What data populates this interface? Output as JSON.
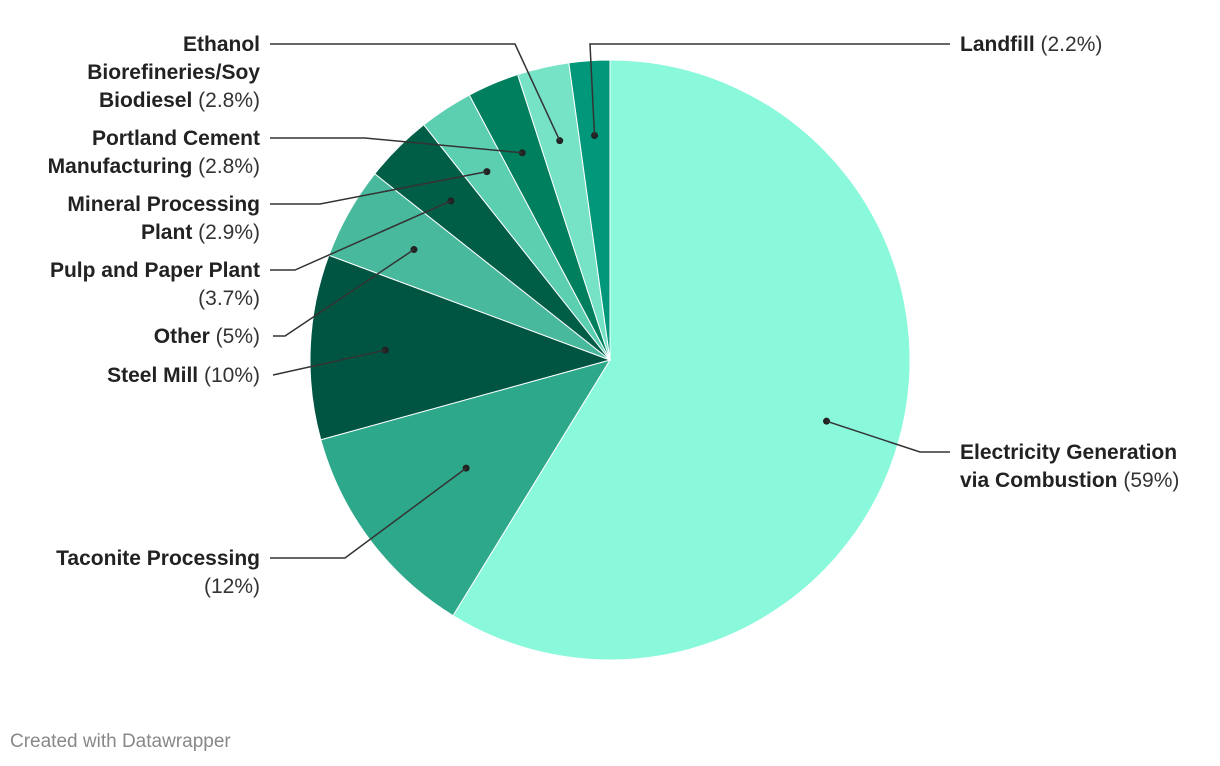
{
  "chart_data": {
    "type": "pie",
    "slices": [
      {
        "name": "Electricity Generation via Combustion",
        "value": 59,
        "display": "(59%)",
        "color": "#8af8da"
      },
      {
        "name": "Taconite Processing",
        "value": 12,
        "display": "(12%)",
        "color": "#2ea88a"
      },
      {
        "name": "Steel Mill",
        "value": 10,
        "display": "(10%)",
        "color": "#005542"
      },
      {
        "name": "Other",
        "value": 5,
        "display": "(5%)",
        "color": "#48b99c"
      },
      {
        "name": "Pulp and Paper Plant",
        "value": 3.7,
        "display": "(3.7%)",
        "color": "#005e46"
      },
      {
        "name": "Mineral Processing Plant",
        "value": 2.9,
        "display": "(2.9%)",
        "color": "#5dcfb1"
      },
      {
        "name": "Portland Cement Manufacturing",
        "value": 2.8,
        "display": "(2.8%)",
        "color": "#007f5f"
      },
      {
        "name": "Ethanol Biorefineries/Soy Biodiesel",
        "value": 2.8,
        "display": "(2.8%)",
        "color": "#76e3c6"
      },
      {
        "name": "Landfill",
        "value": 2.2,
        "display": "(2.2%)",
        "color": "#00977a"
      }
    ]
  },
  "footer": {
    "credit": "Created with Datawrapper"
  }
}
